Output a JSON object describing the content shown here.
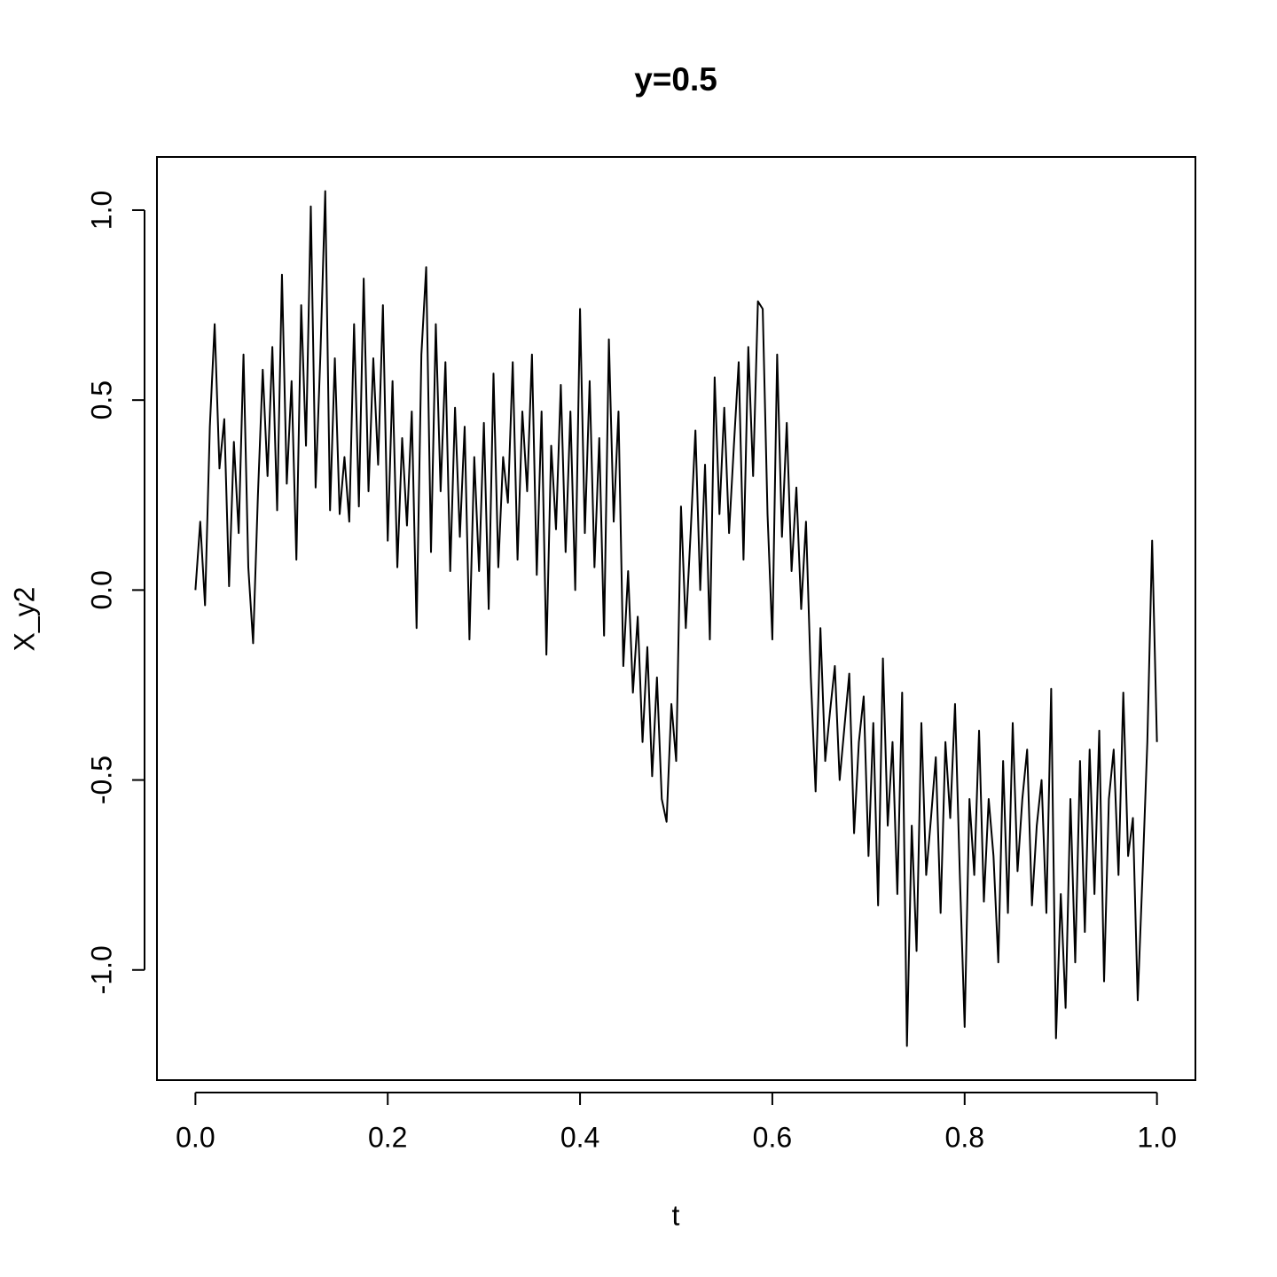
{
  "chart_data": {
    "type": "line",
    "title": "y=0.5",
    "x_label": "t",
    "y_label": "X_y2",
    "xlim": [
      -0.04,
      1.04
    ],
    "ylim": [
      -1.29,
      1.14
    ],
    "xticks": [
      {
        "value": 0,
        "label": "0.0"
      },
      0.2,
      0.4,
      0.6,
      0.8,
      {
        "value": 1,
        "label": "1.0"
      }
    ],
    "yticks": [
      {
        "value": -1,
        "label": "-1.0"
      },
      -0.5,
      {
        "value": 0,
        "label": "0.0"
      },
      0.5,
      {
        "value": 1,
        "label": "1.0"
      }
    ],
    "series": [
      {
        "name": "X_y2",
        "color": "#000000",
        "x": [
          0,
          0.005,
          0.01,
          0.015,
          0.02,
          0.025,
          0.03,
          0.035,
          0.04,
          0.045,
          0.05,
          0.055,
          0.06,
          0.065,
          0.07,
          0.075,
          0.08,
          0.085,
          0.09,
          0.095,
          0.1,
          0.105,
          0.11,
          0.115,
          0.12,
          0.125,
          0.13,
          0.135,
          0.14,
          0.145,
          0.15,
          0.155,
          0.16,
          0.165,
          0.17,
          0.175,
          0.18,
          0.185,
          0.19,
          0.195,
          0.2,
          0.205,
          0.21,
          0.215,
          0.22,
          0.225,
          0.23,
          0.235,
          0.24,
          0.245,
          0.25,
          0.255,
          0.26,
          0.265,
          0.27,
          0.275,
          0.28,
          0.285,
          0.29,
          0.295,
          0.3,
          0.305,
          0.31,
          0.315,
          0.32,
          0.325,
          0.33,
          0.335,
          0.34,
          0.345,
          0.35,
          0.355,
          0.36,
          0.365,
          0.37,
          0.375,
          0.38,
          0.385,
          0.39,
          0.395,
          0.4,
          0.405,
          0.41,
          0.415,
          0.42,
          0.425,
          0.43,
          0.435,
          0.44,
          0.445,
          0.45,
          0.455,
          0.46,
          0.465,
          0.47,
          0.475,
          0.48,
          0.485,
          0.49,
          0.495,
          0.5,
          0.505,
          0.51,
          0.515,
          0.52,
          0.525,
          0.53,
          0.535,
          0.54,
          0.545,
          0.55,
          0.555,
          0.56,
          0.565,
          0.57,
          0.575,
          0.58,
          0.585,
          0.59,
          0.595,
          0.6,
          0.605,
          0.61,
          0.615,
          0.62,
          0.625,
          0.63,
          0.635,
          0.64,
          0.645,
          0.65,
          0.655,
          0.66,
          0.665,
          0.67,
          0.675,
          0.68,
          0.685,
          0.69,
          0.695,
          0.7,
          0.705,
          0.71,
          0.715,
          0.72,
          0.725,
          0.73,
          0.735,
          0.74,
          0.745,
          0.75,
          0.755,
          0.76,
          0.765,
          0.77,
          0.775,
          0.78,
          0.785,
          0.79,
          0.795,
          0.8,
          0.805,
          0.81,
          0.815,
          0.82,
          0.825,
          0.83,
          0.835,
          0.84,
          0.845,
          0.85,
          0.855,
          0.86,
          0.865,
          0.87,
          0.875,
          0.88,
          0.885,
          0.89,
          0.895,
          0.9,
          0.905,
          0.91,
          0.915,
          0.92,
          0.925,
          0.93,
          0.935,
          0.94,
          0.945,
          0.95,
          0.955,
          0.96,
          0.965,
          0.97,
          0.975,
          0.98,
          0.985,
          0.99,
          0.995,
          1
        ],
        "values": [
          0.0,
          0.18,
          -0.04,
          0.43,
          0.7,
          0.32,
          0.45,
          0.01,
          0.39,
          0.15,
          0.62,
          0.06,
          -0.14,
          0.25,
          0.58,
          0.3,
          0.64,
          0.21,
          0.83,
          0.28,
          0.55,
          0.08,
          0.75,
          0.38,
          1.01,
          0.27,
          0.62,
          1.05,
          0.21,
          0.61,
          0.2,
          0.35,
          0.18,
          0.7,
          0.22,
          0.82,
          0.26,
          0.61,
          0.33,
          0.75,
          0.13,
          0.55,
          0.06,
          0.4,
          0.17,
          0.47,
          -0.1,
          0.62,
          0.85,
          0.1,
          0.7,
          0.26,
          0.6,
          0.05,
          0.48,
          0.14,
          0.43,
          -0.13,
          0.35,
          0.05,
          0.44,
          -0.05,
          0.57,
          0.06,
          0.35,
          0.23,
          0.6,
          0.08,
          0.47,
          0.26,
          0.62,
          0.04,
          0.47,
          -0.17,
          0.38,
          0.16,
          0.54,
          0.1,
          0.47,
          0.0,
          0.74,
          0.15,
          0.55,
          0.06,
          0.4,
          -0.12,
          0.66,
          0.18,
          0.47,
          -0.2,
          0.05,
          -0.27,
          -0.07,
          -0.4,
          -0.15,
          -0.49,
          -0.23,
          -0.55,
          -0.61,
          -0.3,
          -0.45,
          0.22,
          -0.1,
          0.15,
          0.42,
          0.0,
          0.33,
          -0.13,
          0.56,
          0.2,
          0.48,
          0.15,
          0.38,
          0.6,
          0.08,
          0.64,
          0.3,
          0.76,
          0.74,
          0.2,
          -0.13,
          0.62,
          0.14,
          0.44,
          0.05,
          0.27,
          -0.05,
          0.18,
          -0.23,
          -0.53,
          -0.1,
          -0.45,
          -0.32,
          -0.2,
          -0.5,
          -0.36,
          -0.22,
          -0.64,
          -0.4,
          -0.28,
          -0.7,
          -0.35,
          -0.83,
          -0.18,
          -0.62,
          -0.4,
          -0.8,
          -0.27,
          -1.2,
          -0.62,
          -0.95,
          -0.35,
          -0.75,
          -0.6,
          -0.44,
          -0.85,
          -0.4,
          -0.6,
          -0.3,
          -0.75,
          -1.15,
          -0.55,
          -0.75,
          -0.37,
          -0.82,
          -0.55,
          -0.7,
          -0.98,
          -0.45,
          -0.85,
          -0.35,
          -0.74,
          -0.55,
          -0.42,
          -0.83,
          -0.62,
          -0.5,
          -0.85,
          -0.26,
          -1.18,
          -0.8,
          -1.1,
          -0.55,
          -0.98,
          -0.45,
          -0.9,
          -0.42,
          -0.8,
          -0.37,
          -1.03,
          -0.55,
          -0.42,
          -0.75,
          -0.27,
          -0.7,
          -0.6,
          -1.08,
          -0.75,
          -0.4,
          0.13,
          -0.4
        ]
      }
    ]
  }
}
